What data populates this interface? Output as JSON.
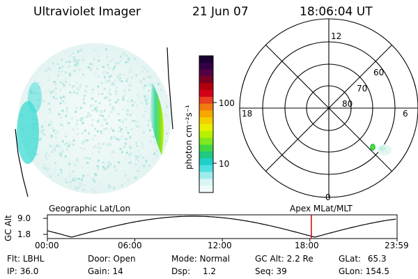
{
  "header": {
    "instrument": "Ultraviolet Imager",
    "date": "21 Jun 07",
    "time": "18:06:04 UT"
  },
  "colorbar": {
    "unit_label": "photon cm⁻²s⁻¹",
    "ticks": [
      "100",
      "10"
    ],
    "colors": [
      "#1a0033",
      "#330044",
      "#550044",
      "#7a0022",
      "#b0000a",
      "#d40018",
      "#e84020",
      "#f07a10",
      "#f5a800",
      "#f5d000",
      "#e8f000",
      "#b8f000",
      "#80e820",
      "#40d840",
      "#20c880",
      "#20d0c8",
      "#50e0e0",
      "#a0ecec",
      "#d8f6f4",
      "#f0fbfa"
    ]
  },
  "polar_plot": {
    "mlt_labels": {
      "top": "12",
      "left": "18",
      "right": "6",
      "bottom": "0"
    },
    "lat_labels": [
      "60",
      "70",
      "80"
    ]
  },
  "orbit_plot": {
    "left_title": "Geographic Lat/Lon",
    "right_title": "Apex MLat/MLT",
    "y_axis_label": "GC Alt",
    "y_ticks": [
      "9.0",
      "1.8"
    ],
    "x_ticks": [
      "00:00",
      "06:00",
      "12:00",
      "18:00",
      "23:59"
    ],
    "current_time_marker": "18:06",
    "marker_color": "#cc0000"
  },
  "info": {
    "flt_label": "Flt:",
    "flt_value": "LBHL",
    "ip_label": "IP:",
    "ip_value": "36.0",
    "door_label": "Door:",
    "door_value": "Open",
    "gain_label": "Gain:",
    "gain_value": "14",
    "mode_label": "Mode:",
    "mode_value": "Normal",
    "dsp_label": "Dsp:",
    "dsp_value": "1.2",
    "gcalt_label": "GC Alt:",
    "gcalt_value": "2.2 Re",
    "seq_label": "Seq:",
    "seq_value": "39",
    "glat_label": "GLat:",
    "glat_value": "65.3",
    "glon_label": "GLon:",
    "glon_value": "154.5"
  }
}
